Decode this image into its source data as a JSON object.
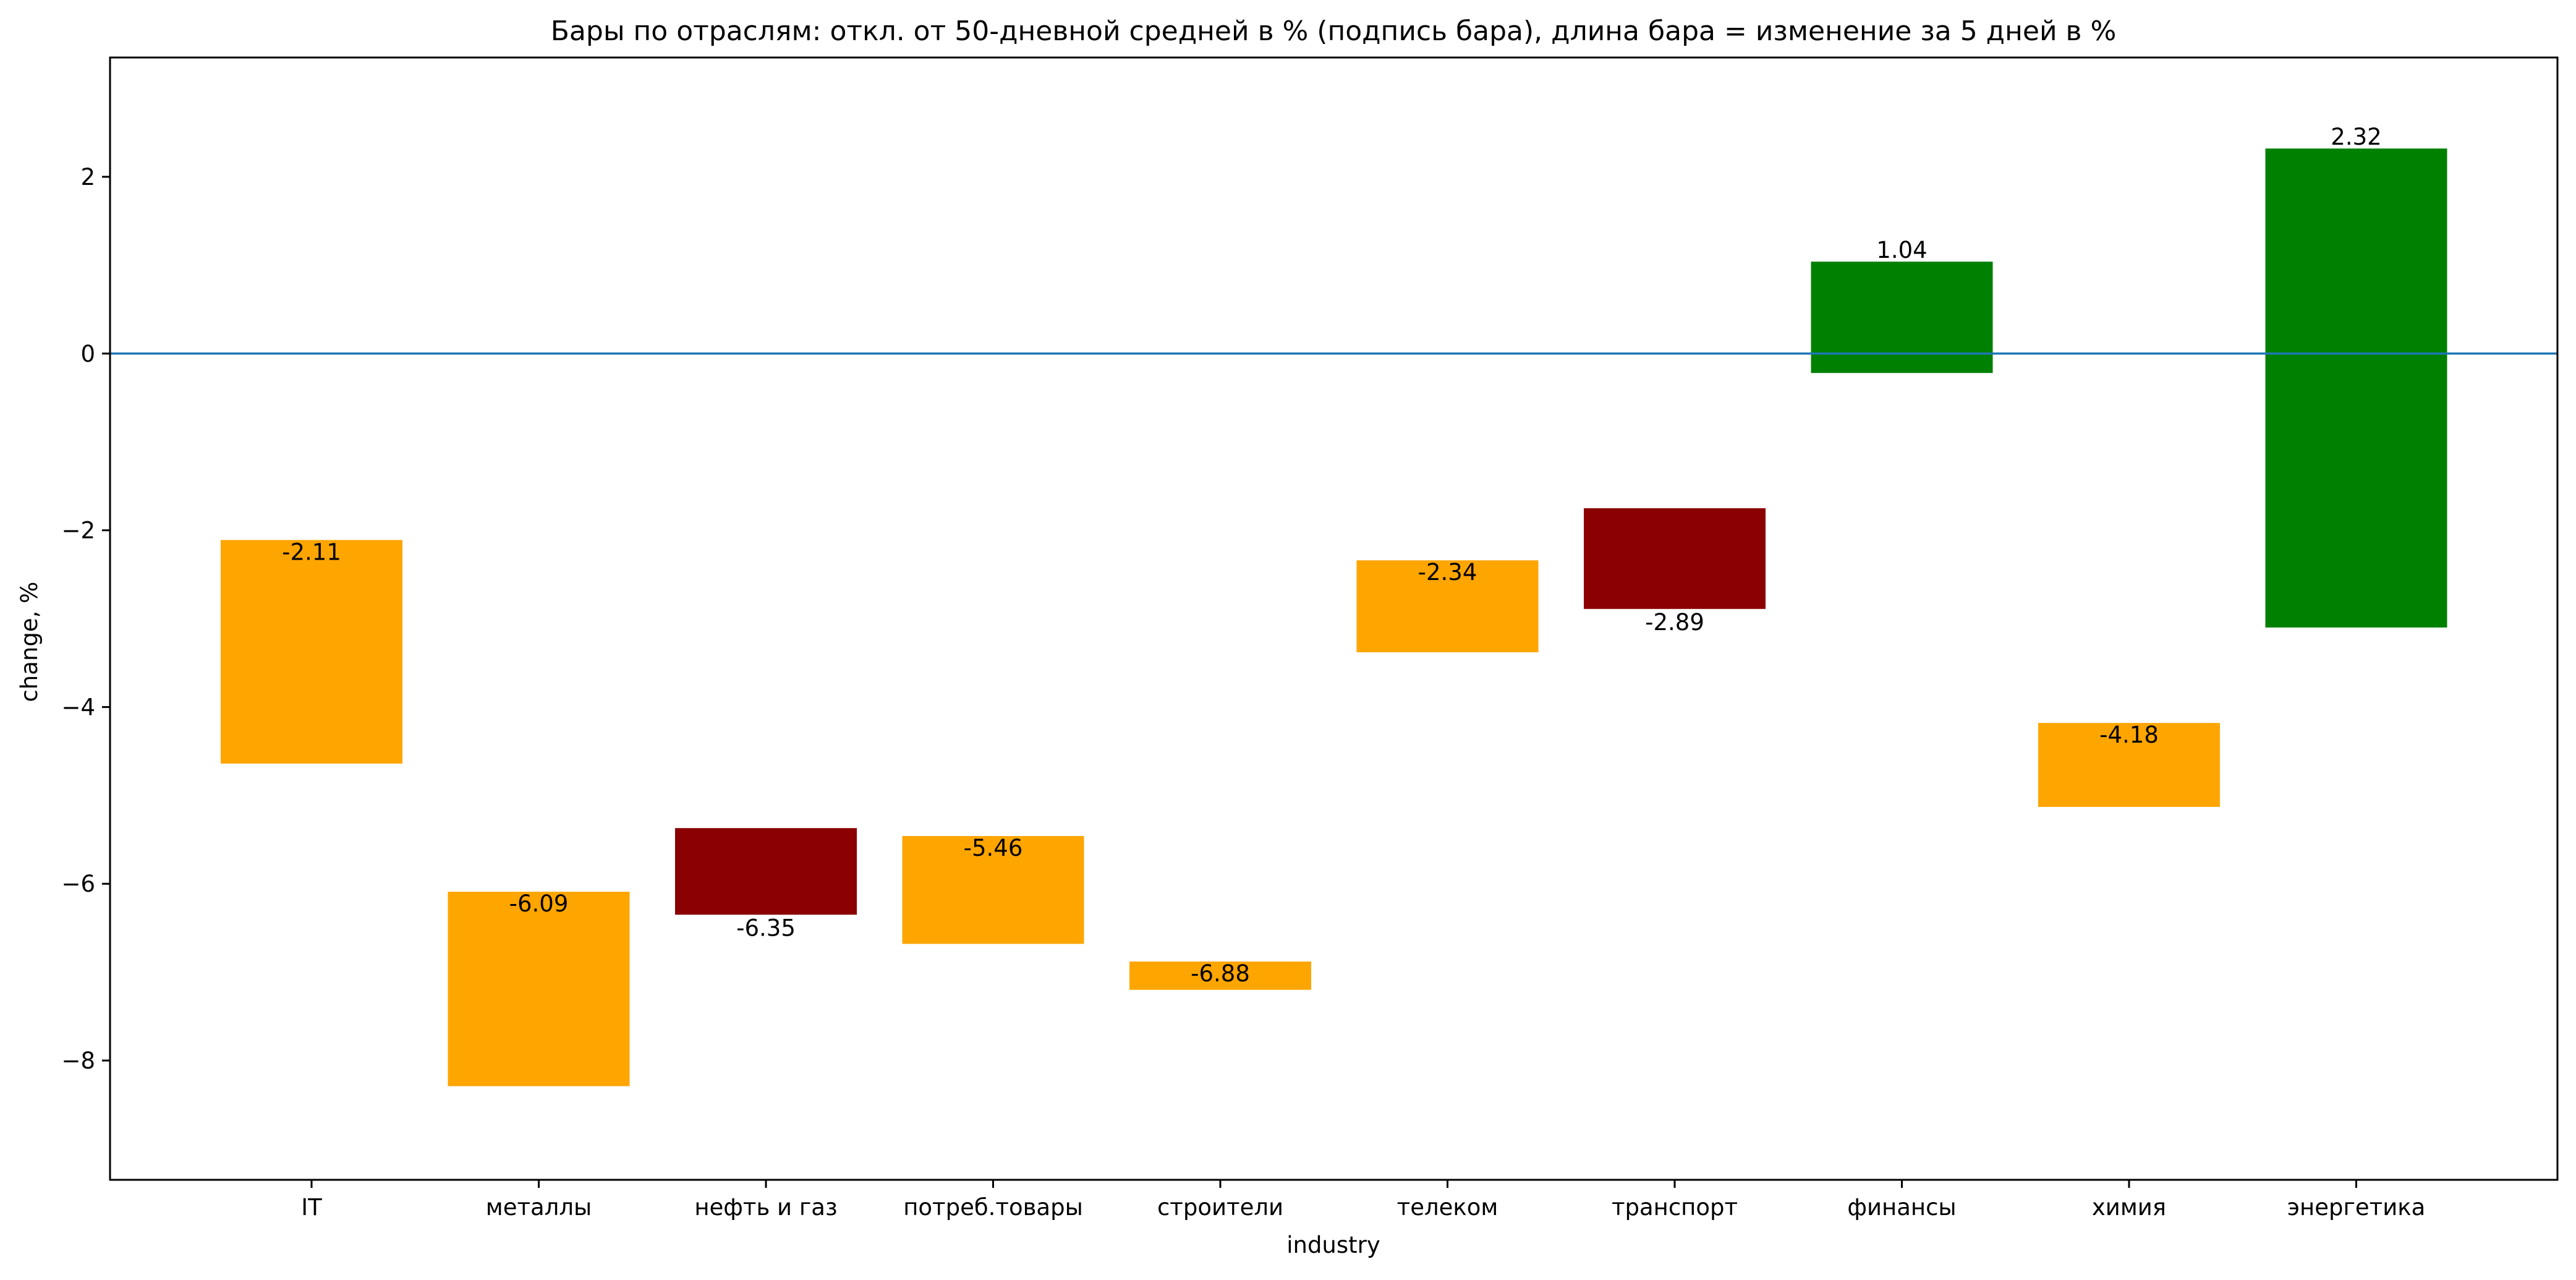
{
  "chart_data": {
    "type": "bar",
    "title": "Бары по отраслям: откл. от 50-дневной средней в % (подпись бара), длина бара = изменение за 5 дней в %",
    "xlabel": "industry",
    "ylabel": "change, %",
    "ylim": [
      -9.35,
      3.35
    ],
    "yticks": [
      2,
      0,
      -2,
      -4,
      -6,
      -8
    ],
    "ytick_labels": [
      "2",
      "0",
      "−2",
      "−4",
      "−6",
      "−8"
    ],
    "grid": false,
    "reference_line": {
      "y": 0,
      "color": "#1f77b4"
    },
    "categories": [
      "IT",
      "металлы",
      "нефть и газ",
      "потреб.товары",
      "строители",
      "телеком",
      "транспорт",
      "финансы",
      "химия",
      "энергетика"
    ],
    "bars": [
      {
        "category": "IT",
        "label": "-2.11",
        "y_from": -4.64,
        "y_to": -2.11,
        "color": "#ffa500",
        "label_at": "inside-top"
      },
      {
        "category": "металлы",
        "label": "-6.09",
        "y_from": -8.29,
        "y_to": -6.09,
        "color": "#ffa500",
        "label_at": "inside-top"
      },
      {
        "category": "нефть и газ",
        "label": "-6.35",
        "y_from": -6.35,
        "y_to": -5.37,
        "color": "#8b0000",
        "label_at": "below"
      },
      {
        "category": "потреб.товары",
        "label": "-5.46",
        "y_from": -6.68,
        "y_to": -5.46,
        "color": "#ffa500",
        "label_at": "inside-top"
      },
      {
        "category": "строители",
        "label": "-6.88",
        "y_from": -7.2,
        "y_to": -6.88,
        "color": "#ffa500",
        "label_at": "inside-top"
      },
      {
        "category": "телеком",
        "label": "-2.34",
        "y_from": -3.38,
        "y_to": -2.34,
        "color": "#ffa500",
        "label_at": "inside-top"
      },
      {
        "category": "транспорт",
        "label": "-2.89",
        "y_from": -2.89,
        "y_to": -1.75,
        "color": "#8b0000",
        "label_at": "below"
      },
      {
        "category": "финансы",
        "label": "1.04",
        "y_from": -0.22,
        "y_to": 1.04,
        "color": "#008000",
        "label_at": "above"
      },
      {
        "category": "химия",
        "label": "-4.18",
        "y_from": -5.13,
        "y_to": -4.18,
        "color": "#ffa500",
        "label_at": "inside-top"
      },
      {
        "category": "энергетика",
        "label": "2.32",
        "y_from": -3.1,
        "y_to": 2.32,
        "color": "#008000",
        "label_at": "above"
      }
    ]
  }
}
